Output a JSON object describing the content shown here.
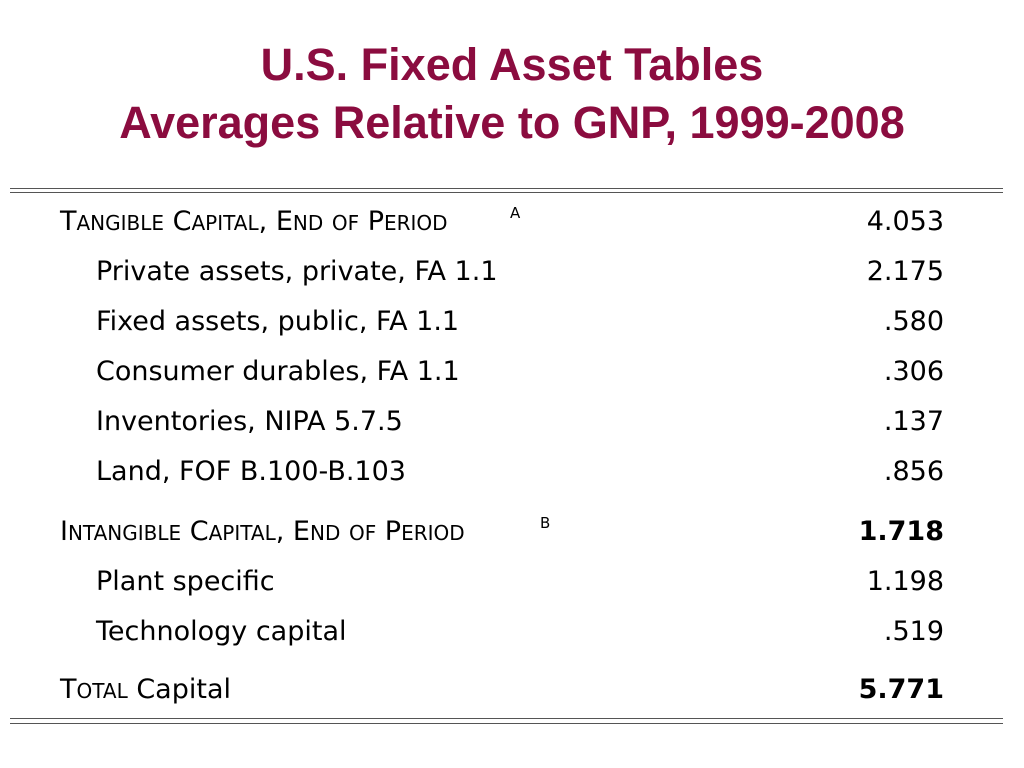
{
  "title": {
    "line1": "U.S. Fixed Asset Tables",
    "line2": "Averages Relative to GNP, 1999-2008"
  },
  "table": {
    "tangible": {
      "label": "Tangible Capital, End of Period",
      "footnote": "A",
      "value": "4.053"
    },
    "tangible_items": [
      {
        "label": "Private assets, private, FA 1.1",
        "value": "2.175"
      },
      {
        "label": "Fixed assets, public, FA 1.1",
        "value": ".580"
      },
      {
        "label": "Consumer durables, FA 1.1",
        "value": ".306"
      },
      {
        "label": "Inventories, NIPA 5.7.5",
        "value": ".137"
      },
      {
        "label": "Land, FOF B.100-B.103",
        "value": ".856"
      }
    ],
    "intangible": {
      "label": "Intangible Capital, End of Period",
      "footnote": "B",
      "value": "1.718"
    },
    "intangible_items": [
      {
        "label": "Plant specific",
        "value": "1.198"
      },
      {
        "label": "Technology capital",
        "value": ".519"
      }
    ],
    "total": {
      "label_prefix": "Total",
      "label_suffix": "Capital",
      "value": "5.771"
    }
  },
  "colors": {
    "title": "#8b0c3f",
    "rule": "#555555"
  }
}
